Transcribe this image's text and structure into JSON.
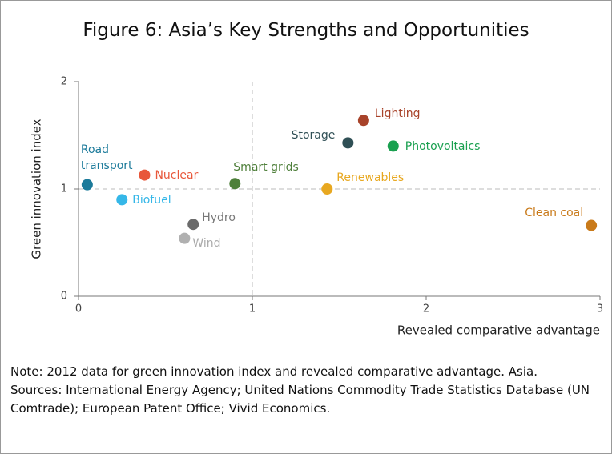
{
  "chart_data": {
    "type": "scatter",
    "title": "Figure 6: Asia’s Key Strengths and Opportunities",
    "xlabel": "Revealed comparative advantage",
    "ylabel": "Green innovation index",
    "xlim": [
      0,
      3
    ],
    "ylim": [
      0,
      2
    ],
    "xticks": [
      0,
      1,
      2,
      3
    ],
    "yticks": [
      0,
      1,
      2
    ],
    "xref": 1,
    "yref": 1,
    "series": [
      {
        "name": "Road transport",
        "color": "#1b7a9a",
        "x": [
          0.05
        ],
        "values": [
          1.04
        ]
      },
      {
        "name": "Nuclear",
        "color": "#e8573a",
        "x": [
          0.38
        ],
        "values": [
          1.13
        ]
      },
      {
        "name": "Biofuel",
        "color": "#35b7e8",
        "x": [
          0.25
        ],
        "values": [
          0.9
        ]
      },
      {
        "name": "Hydro",
        "color": "#6b6b6b",
        "x": [
          0.66
        ],
        "values": [
          0.67
        ]
      },
      {
        "name": "Wind",
        "color": "#b0b0b0",
        "x": [
          0.61
        ],
        "values": [
          0.54
        ]
      },
      {
        "name": "Smart grids",
        "color": "#4e7f3a",
        "x": [
          0.9
        ],
        "values": [
          1.05
        ]
      },
      {
        "name": "Storage",
        "color": "#2f4f55",
        "x": [
          1.55
        ],
        "values": [
          1.43
        ]
      },
      {
        "name": "Lighting",
        "color": "#a8432a",
        "x": [
          1.64
        ],
        "values": [
          1.64
        ]
      },
      {
        "name": "Photovoltaics",
        "color": "#1aa050",
        "x": [
          1.81
        ],
        "values": [
          1.4
        ]
      },
      {
        "name": "Renewables",
        "color": "#e8a820",
        "x": [
          1.43
        ],
        "values": [
          1.0
        ]
      },
      {
        "name": "Clean coal",
        "color": "#c97a1a",
        "x": [
          2.95
        ],
        "values": [
          0.66
        ]
      }
    ]
  },
  "notes": [
    "Note: 2012 data for green innovation index and revealed comparative advantage. Asia.",
    "Sources: International Energy Agency; United Nations Commodity Trade Statistics Database (UN Comtrade); European Patent Office; Vivid Economics."
  ]
}
